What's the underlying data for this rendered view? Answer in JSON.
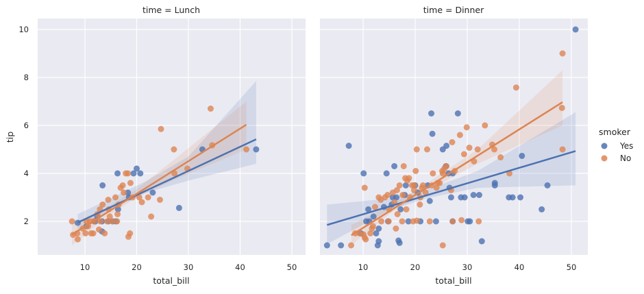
{
  "chart_data": {
    "type": "scatter",
    "xlabel": "total_bill",
    "ylabel": "tip",
    "ylim": [
      0.6,
      10.45
    ],
    "xlim": [
      1,
      53
    ],
    "xticks": [
      10,
      20,
      30,
      40,
      50
    ],
    "yticks": [
      2,
      4,
      6,
      8,
      10
    ],
    "grid": true,
    "legend": {
      "title": "smoker",
      "placement": "right",
      "entries": [
        "Yes",
        "No"
      ]
    },
    "colors": {
      "Yes": "#4c72b0",
      "No": "#dd8452",
      "background": "#eaeaf2"
    },
    "panels": [
      {
        "title": "time = Lunch",
        "series": [
          {
            "name": "Yes",
            "points": [
              [
                8.6,
                1.94
              ],
              [
                16.3,
                4
              ],
              [
                19.4,
                4
              ],
              [
                20,
                4.2
              ],
              [
                20.7,
                4
              ],
              [
                13.4,
                3.5
              ],
              [
                18.3,
                3.2
              ],
              [
                28.2,
                2.56
              ],
              [
                32.7,
                5
              ],
              [
                43.1,
                5
              ],
              [
                13.3,
                1.58
              ],
              [
                15.4,
                2
              ],
              [
                12.4,
                2.2
              ],
              [
                16,
                2
              ],
              [
                12,
                2
              ],
              [
                13.3,
                2
              ],
              [
                10.3,
                1.8
              ],
              [
                18.5,
                3.0
              ],
              [
                23.1,
                3.2
              ],
              [
                16.4,
                2.5
              ],
              [
                11.8,
                2.0
              ],
              [
                14.5,
                2.0
              ]
            ],
            "fit": [
              [
                8.6,
                1.95
              ],
              [
                43.1,
                5.42
              ]
            ],
            "ci": [
              [
                8.6,
                1.6,
                2.3
              ],
              [
                15,
                2.55,
                2.95
              ],
              [
                22,
                3.2,
                3.7
              ],
              [
                30,
                3.7,
                4.7
              ],
              [
                43.1,
                4.4,
                7.85
              ]
            ]
          },
          {
            "name": "No",
            "points": [
              [
                24.7,
                5.85
              ],
              [
                27.2,
                5
              ],
              [
                34.6,
                5.17
              ],
              [
                34.3,
                6.7
              ],
              [
                41.2,
                5
              ],
              [
                29.8,
                4.2
              ],
              [
                27.3,
                4
              ],
              [
                22.8,
                2.2
              ],
              [
                24.5,
                2.9
              ],
              [
                18.7,
                1.5
              ],
              [
                18.4,
                1.36
              ],
              [
                7.5,
                2
              ],
              [
                7.7,
                1.44
              ],
              [
                8.6,
                1.25
              ],
              [
                21,
                2.8
              ],
              [
                20.5,
                3.0
              ],
              [
                17.9,
                4
              ],
              [
                18.3,
                4
              ],
              [
                17.3,
                3.5
              ],
              [
                16.9,
                3.4
              ],
              [
                17.5,
                3.2
              ],
              [
                18.8,
                3.6
              ],
              [
                19.2,
                3.0
              ],
              [
                14.5,
                2.9
              ],
              [
                13.4,
                2.7
              ],
              [
                12.9,
                2.5
              ],
              [
                10.3,
                2
              ],
              [
                11.2,
                1.5
              ],
              [
                11.6,
                1.5
              ],
              [
                12.7,
                1.66
              ],
              [
                13.8,
                1.5
              ],
              [
                15.3,
                2
              ],
              [
                16.3,
                2.3
              ],
              [
                16.2,
                2
              ],
              [
                14.8,
                2.2
              ],
              [
                14.6,
                2.5
              ],
              [
                9.6,
                1.7
              ],
              [
                10.6,
                1.8
              ],
              [
                11.8,
                2
              ],
              [
                13,
                2
              ],
              [
                15.9,
                3.0
              ],
              [
                12.4,
                2.3
              ],
              [
                10.1,
                1.5
              ],
              [
                8.5,
                1.5
              ],
              [
                14.3,
                2
              ],
              [
                22.2,
                3.0
              ],
              [
                16.5,
                2.7
              ],
              [
                11,
                2
              ]
            ],
            "fit": [
              [
                7.5,
                1.45
              ],
              [
                41.2,
                6.03
              ]
            ],
            "ci": [
              [
                7.5,
                1.0,
                1.9
              ],
              [
                14,
                2.15,
                2.55
              ],
              [
                20,
                3.0,
                3.35
              ],
              [
                28,
                3.8,
                4.7
              ],
              [
                41.2,
                5.0,
                7.0
              ]
            ]
          }
        ]
      },
      {
        "title": "time = Dinner",
        "series": [
          {
            "name": "Yes",
            "points": [
              [
                3.07,
                1
              ],
              [
                5.75,
                1
              ],
              [
                7.25,
                5.15
              ],
              [
                10.1,
                4
              ],
              [
                14.5,
                4
              ],
              [
                16,
                4.3
              ],
              [
                23.1,
                6.5
              ],
              [
                28.2,
                6.5
              ],
              [
                23.3,
                5.65
              ],
              [
                25.3,
                5
              ],
              [
                26,
                5.15
              ],
              [
                25.9,
                4.3
              ],
              [
                26.4,
                4
              ],
              [
                27.2,
                4
              ],
              [
                22.4,
                3.5
              ],
              [
                20,
                3.5
              ],
              [
                18.2,
                3.5
              ],
              [
                16.4,
                3
              ],
              [
                15.5,
                2.7
              ],
              [
                14,
                2.6
              ],
              [
                11,
                2.5
              ],
              [
                12,
                2.2
              ],
              [
                11.2,
                2
              ],
              [
                10.6,
                2
              ],
              [
                9.6,
                1.5
              ],
              [
                13,
                1.7
              ],
              [
                12.5,
                1.5
              ],
              [
                12.8,
                1
              ],
              [
                13,
                1.17
              ],
              [
                17,
                1.1
              ],
              [
                16.8,
                1.2
              ],
              [
                32.8,
                1.17
              ],
              [
                21,
                2
              ],
              [
                24,
                2
              ],
              [
                27.2,
                2
              ],
              [
                30.1,
                2
              ],
              [
                30.5,
                2
              ],
              [
                35.3,
                3.6
              ],
              [
                35.3,
                3.5
              ],
              [
                40.5,
                4.73
              ],
              [
                38,
                3
              ],
              [
                38.7,
                3
              ],
              [
                40.2,
                3
              ],
              [
                44.3,
                2.5
              ],
              [
                45.4,
                3.5
              ],
              [
                50.8,
                10
              ],
              [
                32.3,
                3.1
              ],
              [
                28.8,
                3
              ],
              [
                29.5,
                3
              ],
              [
                31.2,
                3.1
              ],
              [
                26.6,
                3.4
              ],
              [
                26.9,
                3
              ],
              [
                22.8,
                2.85
              ],
              [
                18.7,
                2
              ],
              [
                14.8,
                2
              ],
              [
                17.2,
                2.5
              ],
              [
                18,
                3.1
              ],
              [
                20.5,
                3.2
              ],
              [
                15.7,
                3.0
              ]
            ],
            "fit": [
              [
                3.07,
                1.85
              ],
              [
                50.8,
                4.93
              ]
            ],
            "ci": [
              [
                3.07,
                1.05,
                2.7
              ],
              [
                15,
                2.45,
                2.95
              ],
              [
                22,
                2.95,
                3.3
              ],
              [
                32,
                3.4,
                4.1
              ],
              [
                50.8,
                3.5,
                6.55
              ]
            ]
          },
          {
            "name": "No",
            "points": [
              [
                48.3,
                9
              ],
              [
                39.4,
                7.58
              ],
              [
                48.2,
                6.73
              ],
              [
                48.3,
                5
              ],
              [
                38.1,
                4
              ],
              [
                34.8,
                5.2
              ],
              [
                35.2,
                5
              ],
              [
                36.4,
                4.67
              ],
              [
                29.9,
                5.92
              ],
              [
                33.4,
                6
              ],
              [
                32,
                5
              ],
              [
                30.4,
                5.07
              ],
              [
                31.3,
                4.5
              ],
              [
                28.6,
                5.6
              ],
              [
                25.2,
                4.1
              ],
              [
                20.3,
                5
              ],
              [
                22.3,
                5
              ],
              [
                26,
                4.3
              ],
              [
                25.3,
                4
              ],
              [
                24.3,
                3.6
              ],
              [
                23.2,
                3.5
              ],
              [
                21.5,
                3.5
              ],
              [
                19.8,
                3.3
              ],
              [
                18.5,
                3.7
              ],
              [
                17,
                3.5
              ],
              [
                15.7,
                3.2
              ],
              [
                14.2,
                3.0
              ],
              [
                13.4,
                2.9
              ],
              [
                10.3,
                3.4
              ],
              [
                9.3,
                1.5
              ],
              [
                8.5,
                1.5
              ],
              [
                7.7,
                1
              ],
              [
                10.5,
                1.25
              ],
              [
                11.4,
                1.5
              ],
              [
                10.1,
                1.45
              ],
              [
                10.3,
                1.32
              ],
              [
                11.9,
                1.8
              ],
              [
                13.5,
                2
              ],
              [
                14.9,
                2
              ],
              [
                16.3,
                1.7
              ],
              [
                17.5,
                2
              ],
              [
                19.6,
                2
              ],
              [
                20.3,
                2.03
              ],
              [
                22.8,
                2
              ],
              [
                27.2,
                2
              ],
              [
                28.9,
                2.05
              ],
              [
                25.3,
                1
              ],
              [
                32.2,
                2.0
              ],
              [
                18.3,
                2.5
              ],
              [
                16.6,
                2.3
              ],
              [
                15,
                2.5
              ],
              [
                16,
                2.8
              ],
              [
                19.4,
                3.5
              ],
              [
                21,
                3
              ],
              [
                22,
                3.2
              ],
              [
                24.1,
                3.4
              ],
              [
                25.6,
                4.2
              ],
              [
                18.8,
                3.8
              ],
              [
                17.8,
                4.3
              ],
              [
                20.1,
                4.1
              ],
              [
                23.4,
                4.0
              ],
              [
                21.3,
                3.4
              ],
              [
                13,
                3
              ],
              [
                12.3,
                2.6
              ],
              [
                14.7,
                3.1
              ],
              [
                19,
                3.0
              ],
              [
                26.9,
                3.3
              ],
              [
                19.8,
                3.5
              ],
              [
                20.9,
                2.7
              ],
              [
                29.4,
                4.8
              ],
              [
                17.6,
                3.1
              ],
              [
                11.7,
                1.7
              ],
              [
                16.5,
                3.3
              ],
              [
                18.1,
                3.8
              ],
              [
                27.1,
                5.3
              ],
              [
                27.6,
                4.1
              ],
              [
                24.7,
                3.6
              ]
            ],
            "fit": [
              [
                7.74,
                1.42
              ],
              [
                48.3,
                6.97
              ]
            ],
            "ci": [
              [
                7.74,
                1.0,
                1.85
              ],
              [
                15,
                2.3,
                2.65
              ],
              [
                22,
                3.25,
                3.55
              ],
              [
                32,
                4.4,
                5.0
              ],
              [
                48.3,
                6.0,
                8.3
              ]
            ]
          }
        ]
      }
    ]
  }
}
